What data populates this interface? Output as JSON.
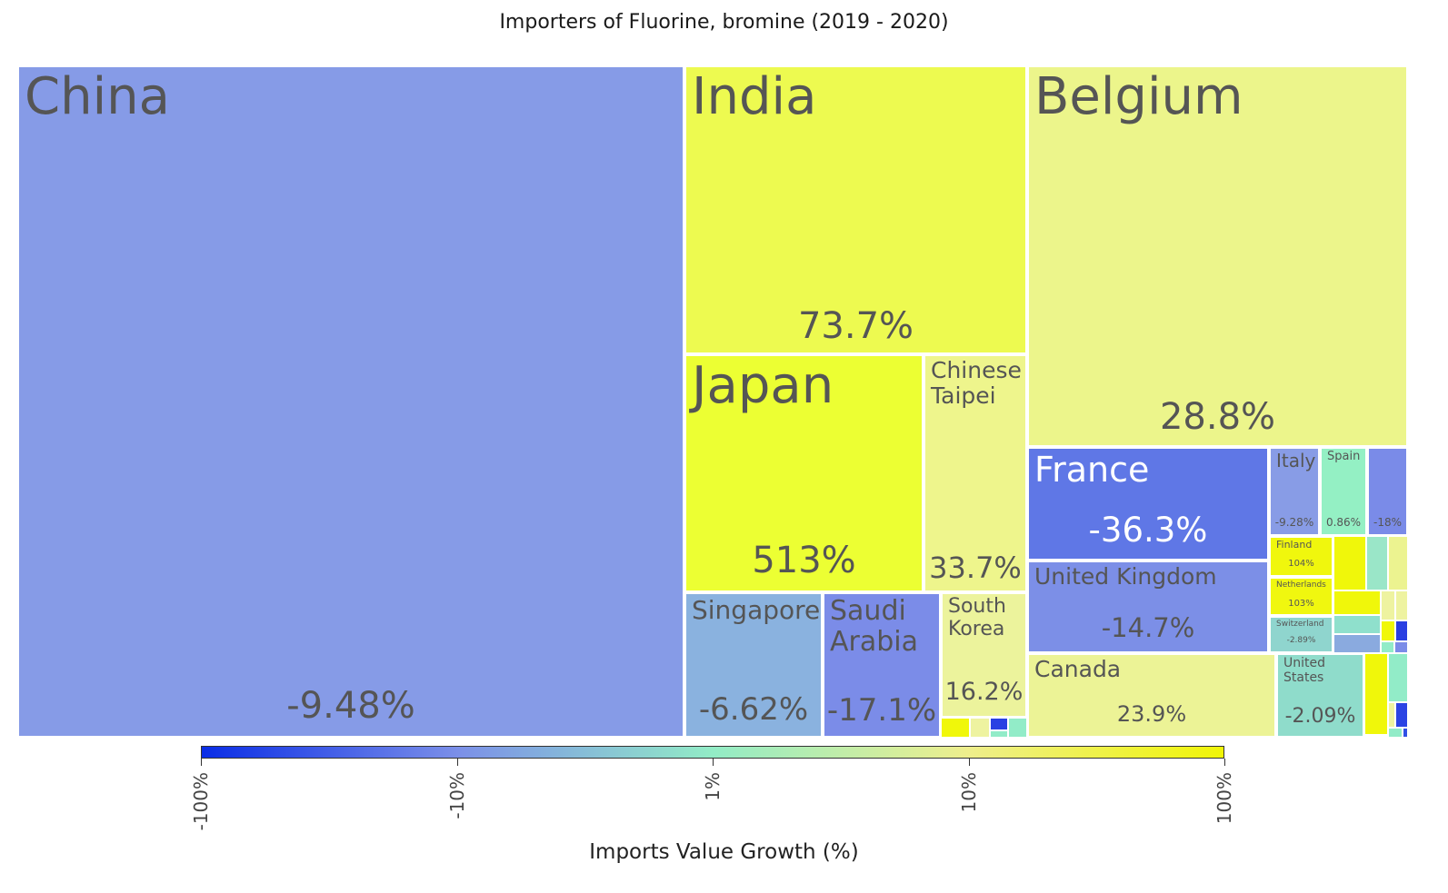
{
  "chart_data": {
    "type": "treemap",
    "title": "Importers of Fluorine, bromine (2019 - 2020)",
    "colorbar": {
      "title": "Imports Value Growth (%)",
      "ticks": [
        "-100%",
        "-10%",
        "1%",
        "10%",
        "100%"
      ],
      "scale": "symmetric-log",
      "colors": [
        "#0a2de6",
        "#7b8fe8",
        "#92ecc6",
        "#eeee8c",
        "#f0f507"
      ]
    },
    "tiles": [
      {
        "name": "China",
        "growth_label": "-9.48%",
        "growth": -9.48,
        "color": "#869be7",
        "text": "dark"
      },
      {
        "name": "India",
        "growth_label": "73.7%",
        "growth": 73.7,
        "color": "#edfa50",
        "text": "dark"
      },
      {
        "name": "Belgium",
        "growth_label": "28.8%",
        "growth": 28.8,
        "color": "#ecf58b",
        "text": "dark"
      },
      {
        "name": "Japan",
        "growth_label": "513%",
        "growth": 513,
        "color": "#ecff33",
        "text": "dark"
      },
      {
        "name": "Chinese\nTaipei",
        "growth_label": "33.7%",
        "growth": 33.7,
        "color": "#eef58c",
        "text": "dark"
      },
      {
        "name": "France",
        "growth_label": "-36.3%",
        "growth": -36.3,
        "color": "#5f77e6",
        "text": "light"
      },
      {
        "name": "United Kingdom",
        "growth_label": "-14.7%",
        "growth": -14.7,
        "color": "#7c8fe7",
        "text": "dark"
      },
      {
        "name": "Singapore",
        "growth_label": "-6.62%",
        "growth": -6.62,
        "color": "#8ab2df",
        "text": "dark"
      },
      {
        "name": "Saudi\nArabia",
        "growth_label": "-17.1%",
        "growth": -17.1,
        "color": "#7b8ce8",
        "text": "dark"
      },
      {
        "name": "South\nKorea",
        "growth_label": "16.2%",
        "growth": 16.2,
        "color": "#ecf39c",
        "text": "dark"
      },
      {
        "name": "Canada",
        "growth_label": "23.9%",
        "growth": 23.9,
        "color": "#ecf396",
        "text": "dark"
      },
      {
        "name": "United States",
        "growth_label": "-2.09%",
        "growth": -2.09,
        "color": "#8fdccb",
        "text": "dark"
      },
      {
        "name": "Italy",
        "growth_label": "-9.28%",
        "growth": -9.28,
        "color": "#889ce6",
        "text": "dark"
      },
      {
        "name": "Spain",
        "growth_label": "0.86%",
        "growth": 0.86,
        "color": "#94f0c4",
        "text": "dark"
      },
      {
        "name": "",
        "growth_label": "-18%",
        "growth": -18,
        "color": "#7a8be8",
        "text": "dark"
      },
      {
        "name": "Finland",
        "growth_label": "104%",
        "growth": 104,
        "color": "#f0f70d",
        "text": "dark"
      },
      {
        "name": "Netherlands",
        "growth_label": "103%",
        "growth": 103,
        "color": "#f0f70f",
        "text": "dark"
      },
      {
        "name": "Switzerland",
        "growth_label": "-2.89%",
        "growth": -2.89,
        "color": "#8fd5ce",
        "text": "dark"
      }
    ],
    "small_tile_colors": [
      "#f0f70a",
      "#eef3a0",
      "#2941e3",
      "#92ecc8",
      "#f0f70a",
      "#9ae6c8",
      "#ecf390",
      "#f0f70a",
      "#eef3a0",
      "#eef3a0",
      "#8fe0cc",
      "#f0f70a",
      "#2a3fe2",
      "#8aaadf",
      "#92ecc8",
      "#7b8ce8",
      "#f0f70a",
      "#92ecc8",
      "#eef3a0",
      "#2b44e4",
      "#92ecc8",
      "#3050e6",
      "#92ecc8"
    ]
  }
}
